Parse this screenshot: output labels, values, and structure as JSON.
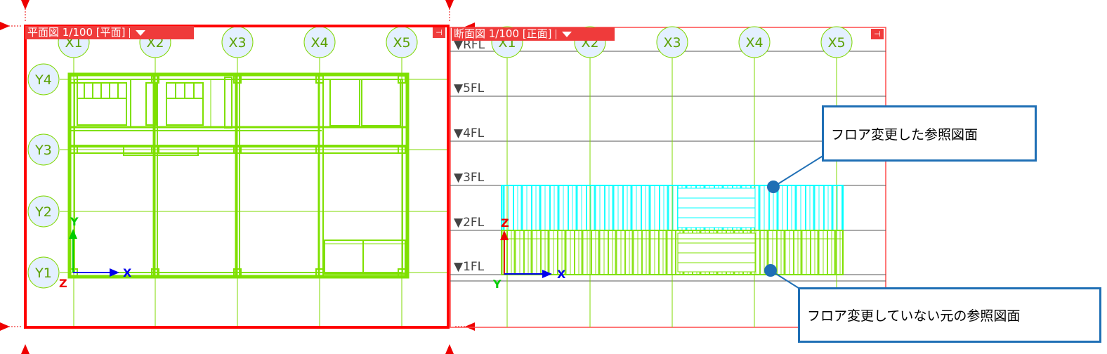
{
  "plan_view": {
    "tab_label": "平面図 1/100 [平面]",
    "x_axes": [
      "X1",
      "X2",
      "X3",
      "X4",
      "X5"
    ],
    "y_axes": [
      "Y4",
      "Y3",
      "Y2",
      "Y1"
    ],
    "coord": {
      "x": "X",
      "y": "Y",
      "z": "Z"
    }
  },
  "section_view": {
    "tab_label": "断面図 1/100 [正面]",
    "x_axes": [
      "X1",
      "X2",
      "X3",
      "X4",
      "X5"
    ],
    "floors": [
      "▼RFL",
      "▼5FL",
      "▼4FL",
      "▼3FL",
      "▼2FL",
      "▼1FL"
    ],
    "coord": {
      "x": "X",
      "y": "Y",
      "z": "Z"
    }
  },
  "callouts": {
    "changed": "フロア変更した参照図面",
    "original": "フロア変更していない元の参照図面"
  },
  "colors": {
    "active_border": "#ff0000",
    "tab_bg": "#ef3b3b",
    "grid_line": "#7fd800",
    "drawing_green": "#7fe000",
    "drawing_cyan": "#00ffff",
    "callout_border": "#1f6fb5"
  }
}
